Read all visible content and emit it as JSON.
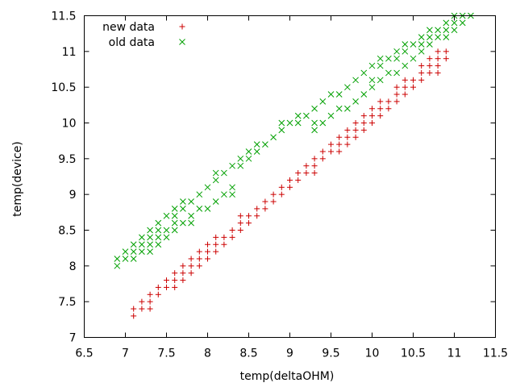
{
  "chart_data": {
    "type": "scatter",
    "xlabel": "temp(deltaOHM)",
    "ylabel": "temp(device)",
    "xlim": [
      6.5,
      11.5
    ],
    "ylim": [
      7,
      11.5
    ],
    "xticks": [
      "6.5",
      "7",
      "7.5",
      "8",
      "8.5",
      "9",
      "9.5",
      "10",
      "10.5",
      "11",
      "11.5"
    ],
    "yticks": [
      "7",
      "7.5",
      "8",
      "8.5",
      "9",
      "9.5",
      "10",
      "10.5",
      "11",
      "11.5"
    ],
    "grid": false,
    "legend_position": "top-left",
    "series": [
      {
        "name": "new data",
        "marker": "plus",
        "color": "#cc0000",
        "points": [
          [
            7.1,
            7.3
          ],
          [
            7.1,
            7.4
          ],
          [
            7.2,
            7.4
          ],
          [
            7.2,
            7.5
          ],
          [
            7.3,
            7.4
          ],
          [
            7.3,
            7.5
          ],
          [
            7.3,
            7.6
          ],
          [
            7.4,
            7.6
          ],
          [
            7.4,
            7.7
          ],
          [
            7.5,
            7.7
          ],
          [
            7.5,
            7.8
          ],
          [
            7.6,
            7.7
          ],
          [
            7.6,
            7.8
          ],
          [
            7.6,
            7.9
          ],
          [
            7.7,
            7.8
          ],
          [
            7.7,
            7.9
          ],
          [
            7.7,
            8.0
          ],
          [
            7.8,
            7.9
          ],
          [
            7.8,
            8.0
          ],
          [
            7.8,
            8.1
          ],
          [
            7.9,
            8.0
          ],
          [
            7.9,
            8.1
          ],
          [
            7.9,
            8.2
          ],
          [
            8.0,
            8.1
          ],
          [
            8.0,
            8.2
          ],
          [
            8.0,
            8.3
          ],
          [
            8.1,
            8.2
          ],
          [
            8.1,
            8.3
          ],
          [
            8.1,
            8.4
          ],
          [
            8.2,
            8.3
          ],
          [
            8.2,
            8.4
          ],
          [
            8.3,
            8.4
          ],
          [
            8.3,
            8.5
          ],
          [
            8.4,
            8.5
          ],
          [
            8.4,
            8.6
          ],
          [
            8.4,
            8.7
          ],
          [
            8.5,
            8.6
          ],
          [
            8.5,
            8.7
          ],
          [
            8.6,
            8.7
          ],
          [
            8.6,
            8.8
          ],
          [
            8.7,
            8.8
          ],
          [
            8.7,
            8.9
          ],
          [
            8.8,
            8.9
          ],
          [
            8.8,
            9.0
          ],
          [
            8.9,
            9.0
          ],
          [
            8.9,
            9.1
          ],
          [
            9.0,
            9.1
          ],
          [
            9.0,
            9.2
          ],
          [
            9.1,
            9.2
          ],
          [
            9.1,
            9.3
          ],
          [
            9.2,
            9.3
          ],
          [
            9.2,
            9.4
          ],
          [
            9.3,
            9.3
          ],
          [
            9.3,
            9.4
          ],
          [
            9.3,
            9.5
          ],
          [
            9.4,
            9.5
          ],
          [
            9.4,
            9.6
          ],
          [
            9.5,
            9.6
          ],
          [
            9.5,
            9.7
          ],
          [
            9.6,
            9.6
          ],
          [
            9.6,
            9.7
          ],
          [
            9.6,
            9.8
          ],
          [
            9.7,
            9.7
          ],
          [
            9.7,
            9.8
          ],
          [
            9.7,
            9.9
          ],
          [
            9.8,
            9.8
          ],
          [
            9.8,
            9.9
          ],
          [
            9.8,
            10.0
          ],
          [
            9.9,
            9.9
          ],
          [
            9.9,
            10.0
          ],
          [
            9.9,
            10.1
          ],
          [
            10.0,
            10.0
          ],
          [
            10.0,
            10.1
          ],
          [
            10.0,
            10.2
          ],
          [
            10.1,
            10.1
          ],
          [
            10.1,
            10.2
          ],
          [
            10.1,
            10.3
          ],
          [
            10.2,
            10.2
          ],
          [
            10.2,
            10.3
          ],
          [
            10.3,
            10.3
          ],
          [
            10.3,
            10.4
          ],
          [
            10.3,
            10.5
          ],
          [
            10.4,
            10.4
          ],
          [
            10.4,
            10.5
          ],
          [
            10.4,
            10.6
          ],
          [
            10.5,
            10.5
          ],
          [
            10.5,
            10.6
          ],
          [
            10.6,
            10.6
          ],
          [
            10.6,
            10.7
          ],
          [
            10.6,
            10.8
          ],
          [
            10.7,
            10.7
          ],
          [
            10.7,
            10.8
          ],
          [
            10.7,
            10.9
          ],
          [
            10.8,
            10.7
          ],
          [
            10.8,
            10.8
          ],
          [
            10.8,
            10.9
          ],
          [
            10.8,
            11.0
          ],
          [
            10.9,
            10.9
          ],
          [
            10.9,
            11.0
          ]
        ]
      },
      {
        "name": "old data",
        "marker": "cross",
        "color": "#00a000",
        "points": [
          [
            6.9,
            8.0
          ],
          [
            6.9,
            8.1
          ],
          [
            7.0,
            8.1
          ],
          [
            7.0,
            8.2
          ],
          [
            7.1,
            8.1
          ],
          [
            7.1,
            8.2
          ],
          [
            7.1,
            8.3
          ],
          [
            7.2,
            8.2
          ],
          [
            7.2,
            8.3
          ],
          [
            7.2,
            8.4
          ],
          [
            7.3,
            8.2
          ],
          [
            7.3,
            8.3
          ],
          [
            7.3,
            8.4
          ],
          [
            7.3,
            8.5
          ],
          [
            7.4,
            8.3
          ],
          [
            7.4,
            8.4
          ],
          [
            7.4,
            8.5
          ],
          [
            7.4,
            8.6
          ],
          [
            7.5,
            8.4
          ],
          [
            7.5,
            8.5
          ],
          [
            7.5,
            8.7
          ],
          [
            7.6,
            8.5
          ],
          [
            7.6,
            8.6
          ],
          [
            7.6,
            8.7
          ],
          [
            7.6,
            8.8
          ],
          [
            7.7,
            8.6
          ],
          [
            7.7,
            8.8
          ],
          [
            7.7,
            8.9
          ],
          [
            7.8,
            8.6
          ],
          [
            7.8,
            8.7
          ],
          [
            7.8,
            8.9
          ],
          [
            7.9,
            8.8
          ],
          [
            7.9,
            9.0
          ],
          [
            8.0,
            8.8
          ],
          [
            8.0,
            9.1
          ],
          [
            8.1,
            8.9
          ],
          [
            8.1,
            9.2
          ],
          [
            8.1,
            9.3
          ],
          [
            8.2,
            9.0
          ],
          [
            8.2,
            9.3
          ],
          [
            8.3,
            9.0
          ],
          [
            8.3,
            9.1
          ],
          [
            8.3,
            9.4
          ],
          [
            8.4,
            9.4
          ],
          [
            8.4,
            9.5
          ],
          [
            8.5,
            9.5
          ],
          [
            8.5,
            9.6
          ],
          [
            8.6,
            9.6
          ],
          [
            8.6,
            9.7
          ],
          [
            8.7,
            9.7
          ],
          [
            8.8,
            9.8
          ],
          [
            8.9,
            9.9
          ],
          [
            8.9,
            10.0
          ],
          [
            9.0,
            10.0
          ],
          [
            9.1,
            10.0
          ],
          [
            9.1,
            10.1
          ],
          [
            9.2,
            10.1
          ],
          [
            9.3,
            9.9
          ],
          [
            9.3,
            10.0
          ],
          [
            9.3,
            10.2
          ],
          [
            9.4,
            10.0
          ],
          [
            9.4,
            10.3
          ],
          [
            9.5,
            10.1
          ],
          [
            9.5,
            10.4
          ],
          [
            9.6,
            10.2
          ],
          [
            9.6,
            10.4
          ],
          [
            9.7,
            10.2
          ],
          [
            9.7,
            10.5
          ],
          [
            9.8,
            10.3
          ],
          [
            9.8,
            10.6
          ],
          [
            9.9,
            10.4
          ],
          [
            9.9,
            10.7
          ],
          [
            10.0,
            10.5
          ],
          [
            10.0,
            10.6
          ],
          [
            10.0,
            10.8
          ],
          [
            10.1,
            10.6
          ],
          [
            10.1,
            10.8
          ],
          [
            10.1,
            10.9
          ],
          [
            10.2,
            10.7
          ],
          [
            10.2,
            10.9
          ],
          [
            10.3,
            10.7
          ],
          [
            10.3,
            10.9
          ],
          [
            10.3,
            11.0
          ],
          [
            10.4,
            10.8
          ],
          [
            10.4,
            11.0
          ],
          [
            10.4,
            11.1
          ],
          [
            10.5,
            10.9
          ],
          [
            10.5,
            11.1
          ],
          [
            10.6,
            11.0
          ],
          [
            10.6,
            11.1
          ],
          [
            10.6,
            11.2
          ],
          [
            10.7,
            11.1
          ],
          [
            10.7,
            11.2
          ],
          [
            10.7,
            11.3
          ],
          [
            10.8,
            11.2
          ],
          [
            10.8,
            11.3
          ],
          [
            10.9,
            11.2
          ],
          [
            10.9,
            11.3
          ],
          [
            10.9,
            11.4
          ],
          [
            11.0,
            11.3
          ],
          [
            11.0,
            11.4
          ],
          [
            11.0,
            11.5
          ],
          [
            11.1,
            11.4
          ],
          [
            11.1,
            11.5
          ],
          [
            11.2,
            11.5
          ]
        ]
      }
    ]
  }
}
